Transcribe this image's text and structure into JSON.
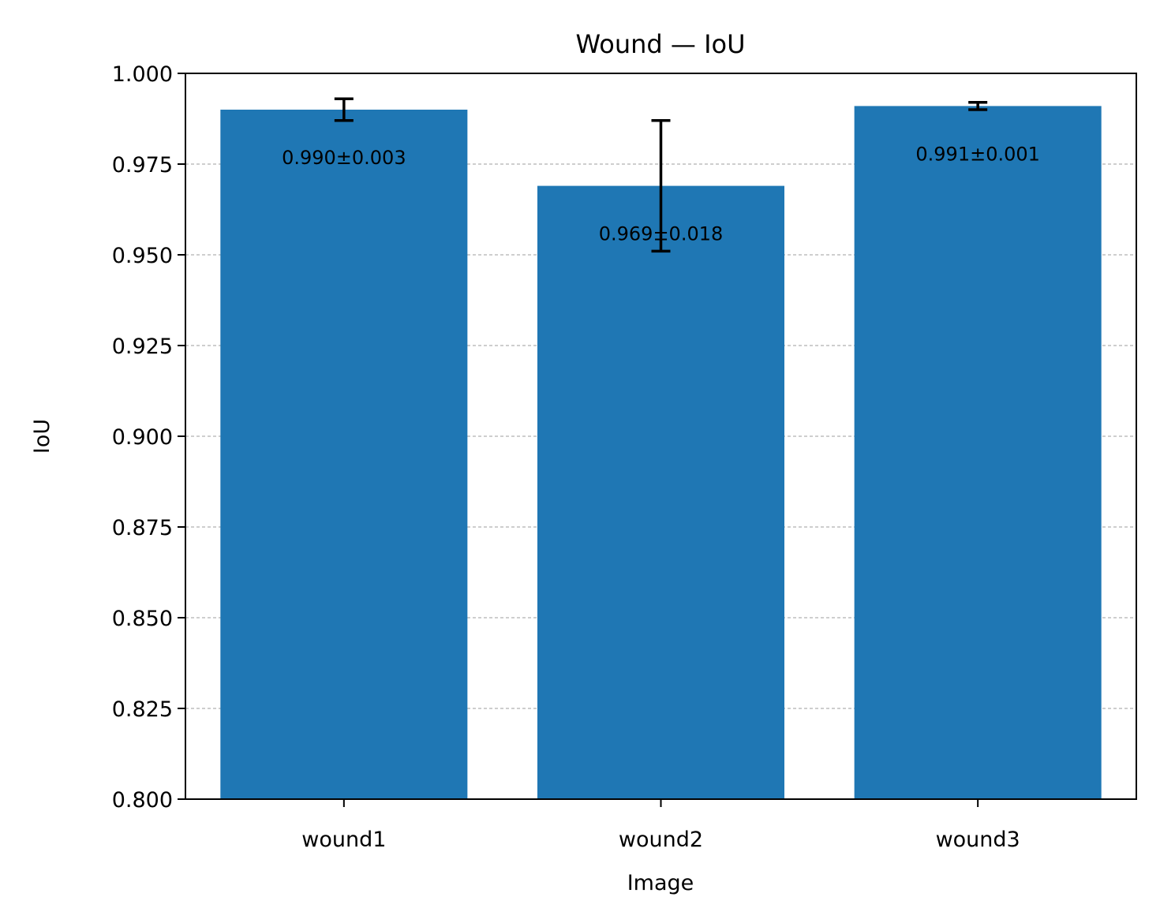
{
  "chart_data": {
    "type": "bar",
    "title": "Wound — IoU",
    "xlabel": "Image",
    "ylabel": "IoU",
    "categories": [
      "wound1",
      "wound2",
      "wound3"
    ],
    "values": [
      0.99,
      0.969,
      0.991
    ],
    "errors": [
      0.003,
      0.018,
      0.001
    ],
    "data_labels": [
      "0.990±0.003",
      "0.969±0.018",
      "0.991±0.001"
    ],
    "ylim": [
      0.8,
      1.0
    ],
    "yticks": [
      0.8,
      0.825,
      0.85,
      0.875,
      0.9,
      0.925,
      0.95,
      0.975,
      1.0
    ],
    "ytick_labels": [
      "0.800",
      "0.825",
      "0.850",
      "0.875",
      "0.900",
      "0.925",
      "0.950",
      "0.975",
      "1.000"
    ],
    "grid": "y-dashed",
    "legend": "none",
    "bar_color": "#1f77b4",
    "errorbar_color": "#000000",
    "grid_color": "#b0b0b0"
  }
}
